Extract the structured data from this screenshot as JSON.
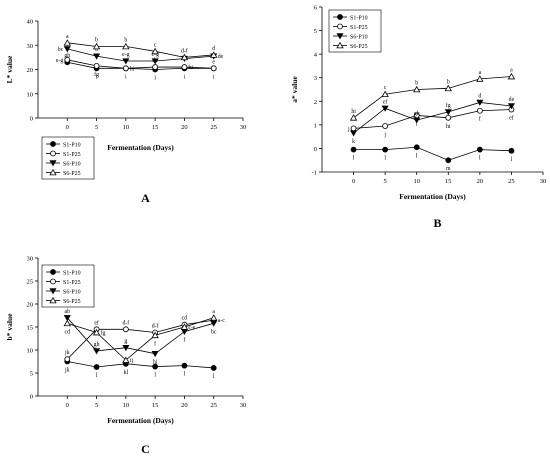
{
  "chart_data": [
    {
      "type": "line",
      "panel_label": "A",
      "ylabel": "L* value",
      "xlabel": "Fermentation (Days)",
      "xlim": [
        -5,
        30
      ],
      "ylim": [
        0,
        40
      ],
      "xticks": [
        "0",
        "5",
        "10",
        "15",
        "20",
        "25",
        "30"
      ],
      "yticks": [
        "0",
        "10",
        "20",
        "30",
        "40"
      ],
      "legend_position": "bottom-left",
      "x": [
        0,
        5,
        10,
        15,
        20,
        25
      ],
      "series": [
        {
          "name": "S1-P10",
          "marker": "filled-circle",
          "values": [
            23,
            20.5,
            20.5,
            20,
            20.5,
            20.5
          ],
          "labels": [
            "gh",
            "i",
            "i",
            "i",
            "i",
            "i"
          ],
          "label_pos": [
            "above",
            "below",
            "below",
            "below",
            "below",
            "below"
          ]
        },
        {
          "name": "S1-P25",
          "marker": "open-circle",
          "values": [
            24,
            21.5,
            20.5,
            21,
            21,
            20.5
          ],
          "labels": [
            "e-g",
            "fg",
            "hi",
            "de",
            "hi",
            "e"
          ],
          "label_pos": [
            "left",
            "below",
            "right",
            "above",
            "right",
            "above"
          ]
        },
        {
          "name": "S6-P10",
          "marker": "filled-triangle",
          "values": [
            28.5,
            25.5,
            23.5,
            23.5,
            24.5,
            25.5
          ],
          "labels": [
            "bc",
            "d",
            "e-g",
            "e-g",
            "",
            "de"
          ],
          "label_pos": [
            "left",
            "above",
            "above",
            "above",
            "above",
            "right"
          ]
        },
        {
          "name": "S6-P25",
          "marker": "open-triangle",
          "values": [
            31,
            29.5,
            29.5,
            27.5,
            25,
            26
          ],
          "labels": [
            "a",
            "b",
            "b",
            "c",
            "d-f",
            "d"
          ],
          "label_pos": [
            "above",
            "above",
            "above",
            "above",
            "above",
            "above"
          ]
        }
      ]
    },
    {
      "type": "line",
      "panel_label": "B",
      "ylabel": "a* value",
      "xlabel": "Fermentation (Days)",
      "xlim": [
        -5,
        30
      ],
      "ylim": [
        -1,
        6
      ],
      "xticks": [
        "0",
        "5",
        "10",
        "15",
        "20",
        "25",
        "30"
      ],
      "yticks": [
        "-1",
        "0",
        "1",
        "2",
        "3",
        "4",
        "5",
        "6"
      ],
      "legend_position": "top-left",
      "x": [
        0,
        5,
        10,
        15,
        20,
        25
      ],
      "series": [
        {
          "name": "S1-P10",
          "marker": "filled-circle",
          "values": [
            -0.05,
            -0.05,
            0.05,
            -0.5,
            -0.05,
            -0.1
          ],
          "labels": [
            "l",
            "l",
            "l",
            "m",
            "l",
            "l"
          ],
          "label_pos": [
            "below",
            "below",
            "below",
            "below",
            "below",
            "below"
          ]
        },
        {
          "name": "S1-P25",
          "marker": "open-circle",
          "values": [
            0.85,
            0.95,
            1.4,
            1.3,
            1.6,
            1.65
          ],
          "labels": [
            "j",
            "j",
            "i",
            "hi",
            "f",
            "ef"
          ],
          "label_pos": [
            "left",
            "below",
            "below",
            "below",
            "below",
            "below"
          ]
        },
        {
          "name": "S6-P10",
          "marker": "filled-triangle",
          "values": [
            0.65,
            1.7,
            1.2,
            1.55,
            1.95,
            1.8
          ],
          "labels": [
            "k",
            "ef",
            "gh",
            "fg",
            "d",
            "de"
          ],
          "label_pos": [
            "below",
            "above",
            "above",
            "above",
            "above",
            "above"
          ]
        },
        {
          "name": "S6-P25",
          "marker": "open-triangle",
          "values": [
            1.3,
            2.3,
            2.5,
            2.55,
            2.95,
            3.05
          ],
          "labels": [
            "hi",
            "c",
            "b",
            "b",
            "a",
            "a"
          ],
          "label_pos": [
            "above",
            "above",
            "above",
            "above",
            "above",
            "above"
          ]
        }
      ]
    },
    {
      "type": "line",
      "panel_label": "C",
      "ylabel": "b* value",
      "xlabel": "Fermentation (Days)",
      "xlim": [
        -5,
        30
      ],
      "ylim": [
        0,
        30
      ],
      "xticks": [
        "0",
        "5",
        "10",
        "15",
        "20",
        "25",
        "30"
      ],
      "yticks": [
        "0",
        "5",
        "10",
        "15",
        "20",
        "25",
        "30"
      ],
      "legend_position": "top-left",
      "x": [
        0,
        5,
        10,
        15,
        20,
        25
      ],
      "series": [
        {
          "name": "S1-P10",
          "marker": "filled-circle",
          "values": [
            7.5,
            6.3,
            7,
            6.4,
            6.6,
            6.1
          ],
          "labels": [
            "jk",
            "l",
            "kl",
            "l",
            "l",
            "l"
          ],
          "label_pos": [
            "below",
            "below",
            "below",
            "below",
            "below",
            "below"
          ]
        },
        {
          "name": "S1-P25",
          "marker": "open-circle",
          "values": [
            8,
            14.5,
            14.5,
            13.8,
            15.5,
            16.5
          ],
          "labels": [
            "jk",
            "ef",
            "d-f",
            "d-f",
            "cd",
            "a-c"
          ],
          "label_pos": [
            "above",
            "above",
            "above",
            "above",
            "above",
            "right"
          ]
        },
        {
          "name": "S6-P10",
          "marker": "filled-triangle",
          "values": [
            17,
            9.8,
            10.5,
            9.2,
            14,
            15.8
          ],
          "labels": [
            "ab",
            "gh",
            "g",
            "hi",
            "f",
            "bc"
          ],
          "label_pos": [
            "above",
            "above",
            "above",
            "below",
            "below",
            "below"
          ]
        },
        {
          "name": "S6-P25",
          "marker": "open-triangle",
          "values": [
            15.8,
            13.8,
            7.8,
            13.2,
            15,
            17
          ],
          "labels": [
            "cd",
            "fg",
            "ij",
            "f",
            "c-e",
            "a"
          ],
          "label_pos": [
            "below",
            "right",
            "right",
            "below",
            "right",
            "above"
          ]
        }
      ]
    }
  ]
}
